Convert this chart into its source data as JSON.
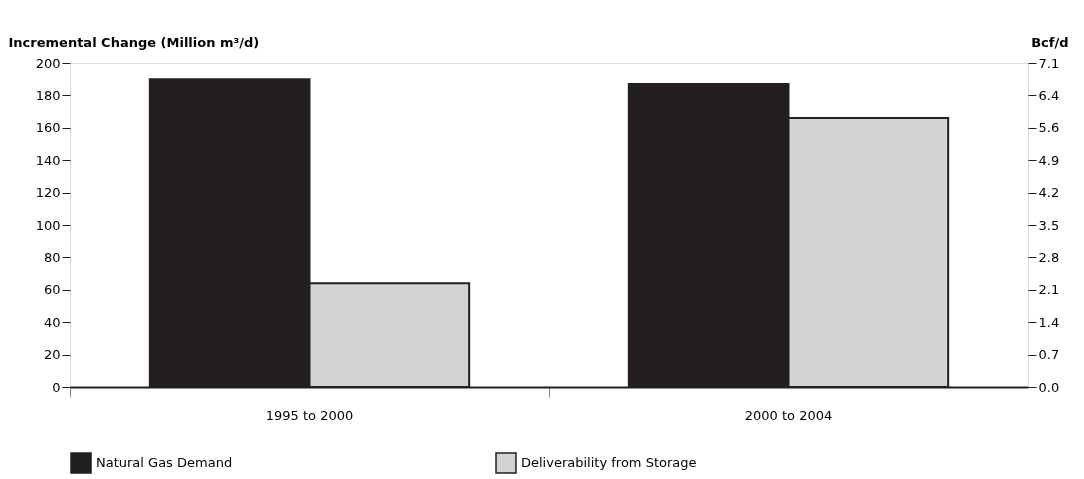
{
  "chart_data": {
    "type": "bar",
    "ylabel": "Incremental Change (Million m³/d)",
    "y2label": "Bcf/d",
    "categories": [
      "1995 to 2000",
      "2000 to 2004"
    ],
    "series": [
      {
        "name": "Natural Gas Demand",
        "color": "#231f20",
        "values": [
          190,
          187
        ]
      },
      {
        "name": "Deliverability from Storage",
        "color": "#d1d3d4",
        "values": [
          64,
          166
        ]
      }
    ],
    "ylim": [
      0,
      200
    ],
    "yticks": [
      0,
      20,
      40,
      60,
      80,
      100,
      120,
      140,
      160,
      180,
      200
    ],
    "y2lim": [
      0,
      7.06
    ],
    "y2ticks": [
      {
        "value": 0,
        "label": "0.0"
      },
      {
        "value": 0.706,
        "label": "0.7"
      },
      {
        "value": 1.412,
        "label": "1.4"
      },
      {
        "value": 2.118,
        "label": "2.1"
      },
      {
        "value": 2.824,
        "label": "2.8"
      },
      {
        "value": 3.53,
        "label": "3.5"
      },
      {
        "value": 4.236,
        "label": "4.2"
      },
      {
        "value": 4.942,
        "label": "4.9"
      },
      {
        "value": 5.648,
        "label": "5.6"
      },
      {
        "value": 6.354,
        "label": "6.4"
      },
      {
        "value": 7.06,
        "label": "7.1"
      }
    ],
    "grid": false,
    "legend": "bottom"
  }
}
